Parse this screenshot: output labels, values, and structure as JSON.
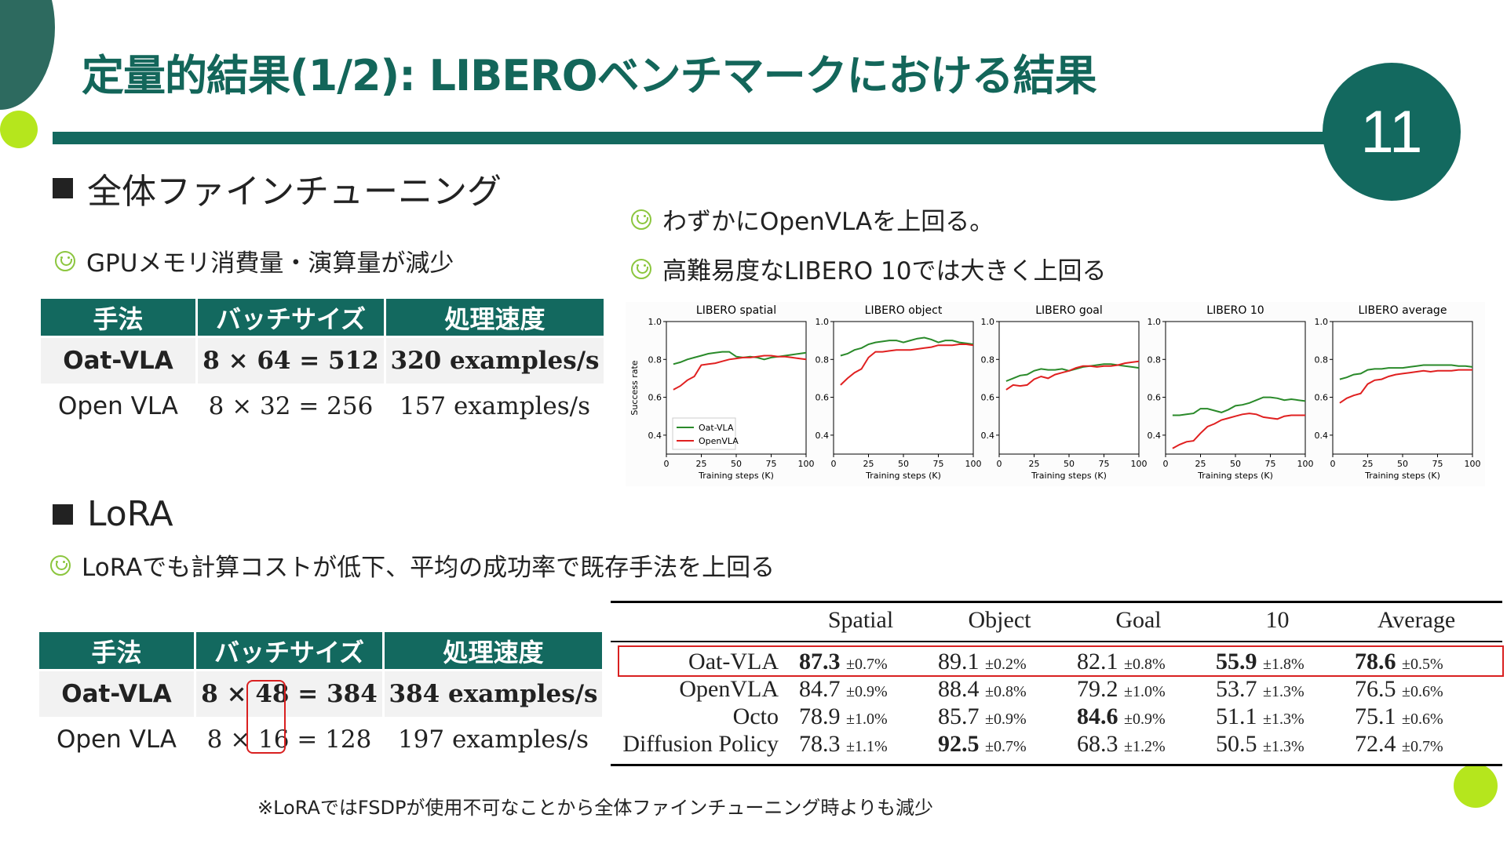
{
  "title": "定量的結果(1/2): LIBEROベンチマークにおける結果",
  "page_number": "11",
  "section_full": {
    "heading": "全体ファインチューニング",
    "bullet": "GPUメモリ消費量・演算量が減少",
    "table": {
      "headers": [
        "手法",
        "バッチサイズ",
        "処理速度"
      ],
      "rows": [
        [
          "Oat-VLA",
          "8 × 64 = 512",
          "320 examples/s"
        ],
        [
          "Open VLA",
          "8 × 32 = 256",
          "157 examples/s"
        ]
      ]
    }
  },
  "right_bullets": [
    "わずかにOpenVLAを上回る。",
    "高難易度なLIBERO 10では大きく上回る"
  ],
  "section_lora": {
    "heading": "LoRA",
    "bullet": "LoRAでも計算コストが低下、平均の成功率で既存手法を上回る",
    "table": {
      "headers": [
        "手法",
        "バッチサイズ",
        "処理速度"
      ],
      "rows": [
        {
          "method": "Oat-VLA",
          "pre": "8 ×",
          "mid": "48",
          "post": "= 384",
          "speed": "384 examples/s"
        },
        {
          "method": "Open VLA",
          "pre": "8 ×",
          "mid": "16",
          "post": "= 128",
          "speed": "197 examples/s"
        }
      ]
    }
  },
  "results_table": {
    "headers": [
      "",
      "Spatial",
      "Object",
      "Goal",
      "10",
      "Average"
    ],
    "rows": [
      {
        "name": "Oat-VLA",
        "cells": [
          [
            "87.3",
            "±0.7%",
            true
          ],
          [
            "89.1",
            "±0.2%",
            false
          ],
          [
            "82.1",
            "±0.8%",
            false
          ],
          [
            "55.9",
            "±1.8%",
            true
          ],
          [
            "78.6",
            "±0.5%",
            true
          ]
        ]
      },
      {
        "name": "OpenVLA",
        "cells": [
          [
            "84.7",
            "±0.9%",
            false
          ],
          [
            "88.4",
            "±0.8%",
            false
          ],
          [
            "79.2",
            "±1.0%",
            false
          ],
          [
            "53.7",
            "±1.3%",
            false
          ],
          [
            "76.5",
            "±0.6%",
            false
          ]
        ]
      },
      {
        "name": "Octo",
        "cells": [
          [
            "78.9",
            "±1.0%",
            false
          ],
          [
            "85.7",
            "±0.9%",
            false
          ],
          [
            "84.6",
            "±0.9%",
            true
          ],
          [
            "51.1",
            "±1.3%",
            false
          ],
          [
            "75.1",
            "±0.6%",
            false
          ]
        ]
      },
      {
        "name": "Diffusion Policy",
        "cells": [
          [
            "78.3",
            "±1.1%",
            false
          ],
          [
            "92.5",
            "±0.7%",
            true
          ],
          [
            "68.3",
            "±1.2%",
            false
          ],
          [
            "50.5",
            "±1.3%",
            false
          ],
          [
            "72.4",
            "±0.7%",
            false
          ]
        ]
      }
    ]
  },
  "footnote": "※LoRAではFSDPが使用不可なことから全体ファインチューニング時よりも減少",
  "chart_data": {
    "type": "line",
    "ylabel": "Success rate",
    "xlabel": "Training steps (K)",
    "ylim": [
      0.3,
      1.0
    ],
    "xlim": [
      0,
      100
    ],
    "yticks": [
      "0.4",
      "0.6",
      "0.8",
      "1.0"
    ],
    "xticks": [
      "0",
      "25",
      "50",
      "75",
      "100"
    ],
    "legend": {
      "placement": "bottom-left",
      "entries": [
        "Oat-VLA",
        "OpenVLA"
      ]
    },
    "colors": {
      "Oat-VLA": "#2a8a2a",
      "OpenVLA": "#e02020"
    },
    "x": [
      5,
      10,
      15,
      20,
      25,
      30,
      35,
      40,
      45,
      50,
      55,
      60,
      65,
      70,
      75,
      80,
      85,
      90,
      95,
      100
    ],
    "panels": [
      {
        "title": "LIBERO spatial",
        "series": [
          {
            "name": "Oat-VLA",
            "values": [
              0.775,
              0.785,
              0.8,
              0.81,
              0.82,
              0.83,
              0.835,
              0.84,
              0.84,
              0.815,
              0.81,
              0.815,
              0.81,
              0.8,
              0.81,
              0.815,
              0.82,
              0.825,
              0.83,
              0.835
            ]
          },
          {
            "name": "OpenVLA",
            "values": [
              0.64,
              0.66,
              0.69,
              0.71,
              0.77,
              0.775,
              0.78,
              0.79,
              0.8,
              0.805,
              0.81,
              0.81,
              0.815,
              0.82,
              0.82,
              0.815,
              0.815,
              0.81,
              0.805,
              0.8
            ]
          }
        ]
      },
      {
        "title": "LIBERO object",
        "series": [
          {
            "name": "Oat-VLA",
            "values": [
              0.82,
              0.83,
              0.85,
              0.86,
              0.88,
              0.89,
              0.895,
              0.9,
              0.9,
              0.89,
              0.9,
              0.91,
              0.915,
              0.905,
              0.89,
              0.9,
              0.9,
              0.89,
              0.885,
              0.88
            ]
          },
          {
            "name": "OpenVLA",
            "values": [
              0.665,
              0.7,
              0.73,
              0.75,
              0.81,
              0.84,
              0.84,
              0.845,
              0.85,
              0.85,
              0.85,
              0.855,
              0.86,
              0.865,
              0.875,
              0.875,
              0.875,
              0.88,
              0.88,
              0.875
            ]
          }
        ]
      },
      {
        "title": "LIBERO goal",
        "series": [
          {
            "name": "Oat-VLA",
            "values": [
              0.685,
              0.7,
              0.715,
              0.72,
              0.74,
              0.75,
              0.745,
              0.745,
              0.75,
              0.74,
              0.75,
              0.76,
              0.765,
              0.77,
              0.775,
              0.775,
              0.77,
              0.765,
              0.76,
              0.755
            ]
          },
          {
            "name": "OpenVLA",
            "values": [
              0.64,
              0.665,
              0.66,
              0.665,
              0.695,
              0.71,
              0.7,
              0.72,
              0.73,
              0.74,
              0.755,
              0.765,
              0.765,
              0.76,
              0.765,
              0.765,
              0.77,
              0.78,
              0.785,
              0.79
            ]
          }
        ]
      },
      {
        "title": "LIBERO 10",
        "series": [
          {
            "name": "Oat-VLA",
            "values": [
              0.505,
              0.505,
              0.51,
              0.515,
              0.54,
              0.54,
              0.53,
              0.52,
              0.535,
              0.555,
              0.56,
              0.57,
              0.585,
              0.6,
              0.6,
              0.595,
              0.585,
              0.59,
              0.585,
              0.58
            ]
          },
          {
            "name": "OpenVLA",
            "values": [
              0.33,
              0.35,
              0.365,
              0.37,
              0.41,
              0.445,
              0.46,
              0.48,
              0.49,
              0.5,
              0.51,
              0.515,
              0.51,
              0.495,
              0.49,
              0.485,
              0.5,
              0.505,
              0.505,
              0.505
            ]
          }
        ]
      },
      {
        "title": "LIBERO average",
        "series": [
          {
            "name": "Oat-VLA",
            "values": [
              0.695,
              0.705,
              0.72,
              0.725,
              0.745,
              0.75,
              0.75,
              0.755,
              0.755,
              0.755,
              0.76,
              0.765,
              0.77,
              0.77,
              0.77,
              0.77,
              0.77,
              0.765,
              0.765,
              0.76
            ]
          },
          {
            "name": "OpenVLA",
            "values": [
              0.57,
              0.595,
              0.61,
              0.62,
              0.67,
              0.69,
              0.695,
              0.71,
              0.72,
              0.725,
              0.73,
              0.735,
              0.74,
              0.735,
              0.74,
              0.74,
              0.74,
              0.745,
              0.745,
              0.745
            ]
          }
        ]
      }
    ]
  }
}
